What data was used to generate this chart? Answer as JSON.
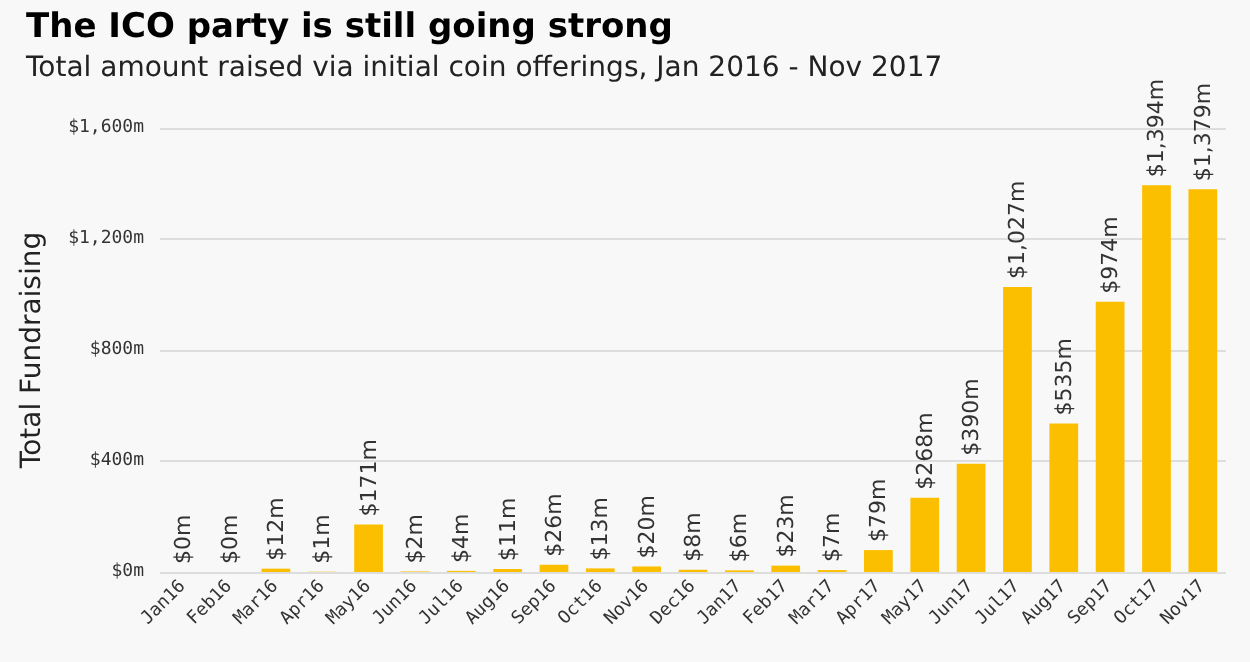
{
  "chart_data": {
    "type": "bar",
    "title": "The ICO party is still going strong",
    "subtitle": "Total amount raised via initial coin offerings, Jan 2016 - Nov 2017",
    "ylabel": "Total Fundraising",
    "categories": [
      "Jan16",
      "Feb16",
      "Mar16",
      "Apr16",
      "May16",
      "Jun16",
      "Jul16",
      "Aug16",
      "Sep16",
      "Oct16",
      "Nov16",
      "Dec16",
      "Jan17",
      "Feb17",
      "Mar17",
      "Apr17",
      "May17",
      "Jun17",
      "Jul17",
      "Aug17",
      "Sep17",
      "Oct17",
      "Nov17"
    ],
    "values": [
      0,
      0,
      12,
      1,
      171,
      2,
      4,
      11,
      26,
      13,
      20,
      8,
      6,
      23,
      7,
      79,
      268,
      390,
      1027,
      535,
      974,
      1394,
      1379
    ],
    "value_labels": [
      "$0m",
      "$0m",
      "$12m",
      "$1m",
      "$171m",
      "$2m",
      "$4m",
      "$11m",
      "$26m",
      "$13m",
      "$20m",
      "$8m",
      "$6m",
      "$23m",
      "$7m",
      "$79m",
      "$268m",
      "$390m",
      "$1,027m",
      "$535m",
      "$974m",
      "$1,394m",
      "$1,379m"
    ],
    "color": "#fcbf00",
    "ylim": [
      0,
      1600
    ],
    "yticks": [
      {
        "value": 0,
        "label": "$0m"
      },
      {
        "value": 400,
        "label": "$400m"
      },
      {
        "value": 800,
        "label": "$800m"
      },
      {
        "value": 1200,
        "label": "$1,200m"
      },
      {
        "value": 1600,
        "label": "$1,600m"
      }
    ],
    "grid": "y"
  }
}
